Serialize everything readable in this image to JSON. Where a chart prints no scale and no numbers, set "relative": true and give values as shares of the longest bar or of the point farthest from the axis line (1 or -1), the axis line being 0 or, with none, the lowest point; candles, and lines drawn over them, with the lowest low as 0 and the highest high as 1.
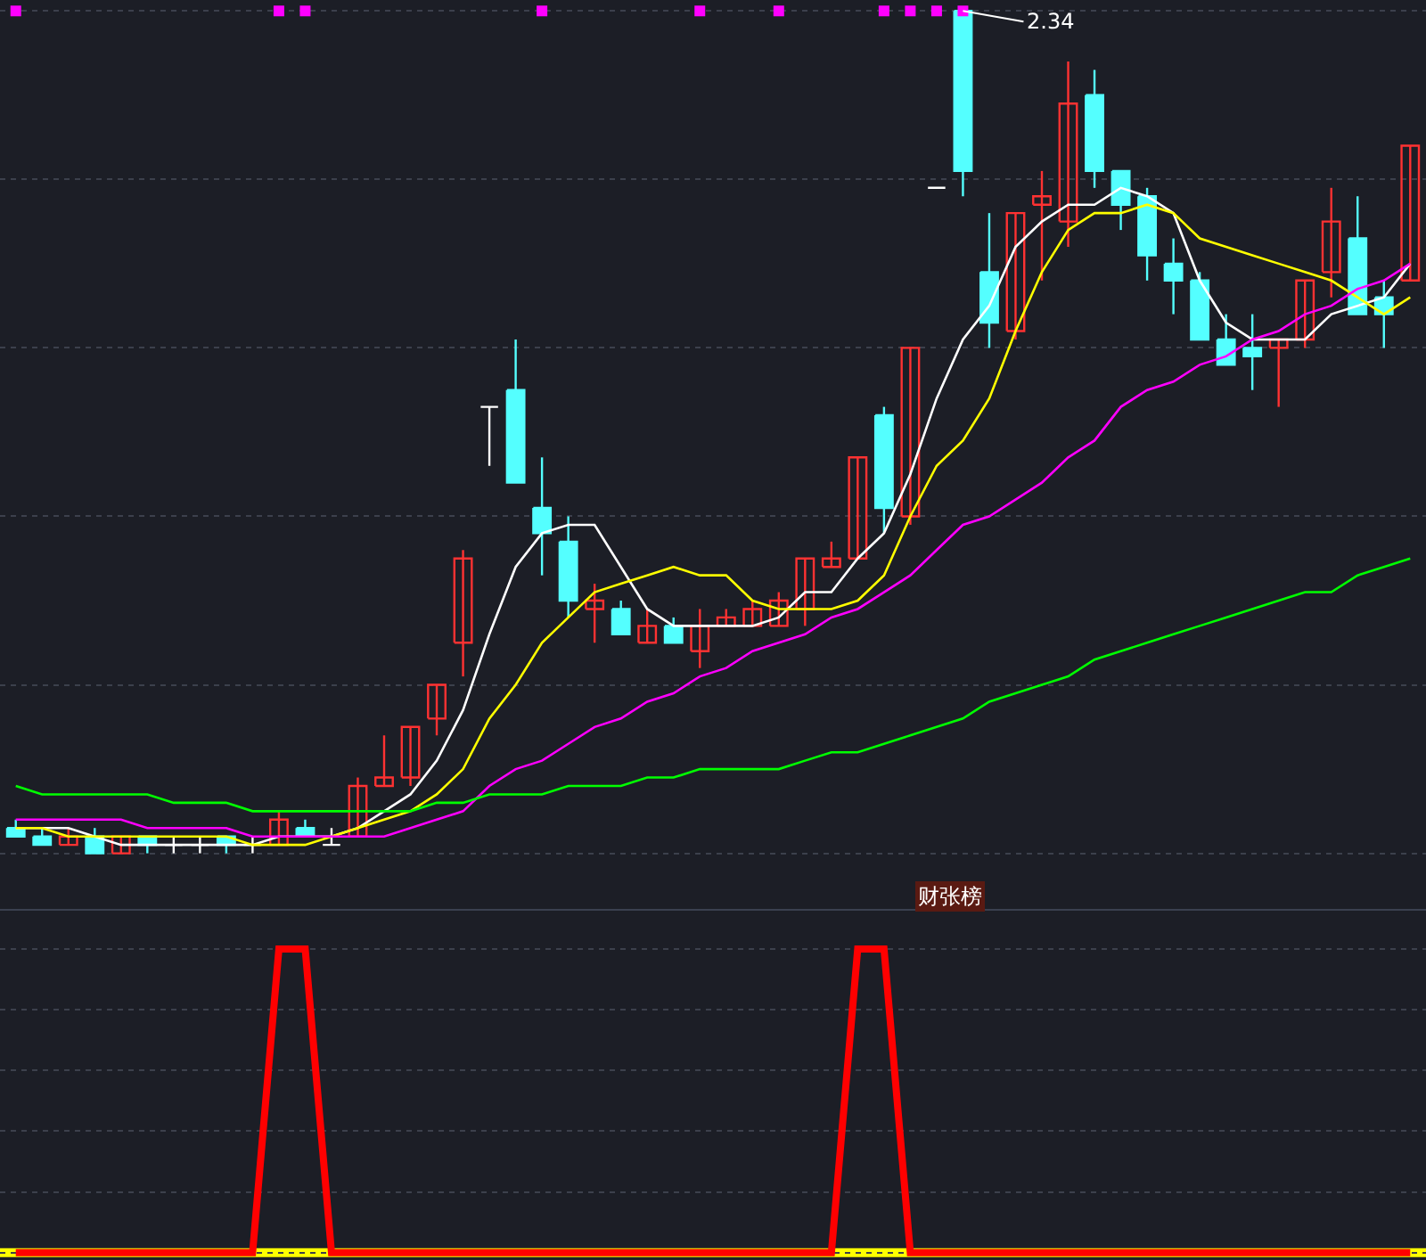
{
  "chart_data": [
    {
      "type": "candlestick",
      "relative": true,
      "grid": true,
      "categories": [
        null,
        null,
        null,
        null,
        null,
        null,
        null,
        null,
        null,
        null,
        null,
        null,
        null,
        null,
        null,
        null,
        null,
        null,
        null,
        null,
        null,
        null,
        null,
        null,
        null,
        null,
        null,
        null,
        null,
        null,
        null,
        null,
        null,
        null,
        null,
        null,
        null,
        null,
        null,
        null,
        null,
        null,
        null,
        null,
        null,
        null,
        null,
        null,
        null,
        null,
        null,
        null,
        null,
        null
      ],
      "ohlc": [
        [
          0.03,
          0.04,
          0.02,
          0.02
        ],
        [
          0.02,
          0.03,
          0.01,
          0.01
        ],
        [
          0.01,
          0.03,
          0.01,
          0.02
        ],
        [
          0.02,
          0.03,
          0.0,
          0.0
        ],
        [
          0.0,
          0.02,
          0.0,
          0.02
        ],
        [
          0.02,
          0.02,
          0.0,
          0.01
        ],
        [
          0.01,
          0.02,
          0.0,
          0.01
        ],
        [
          0.01,
          0.02,
          0.0,
          0.01
        ],
        [
          0.02,
          0.02,
          0.0,
          0.01
        ],
        [
          0.01,
          0.02,
          0.0,
          0.01
        ],
        [
          0.01,
          0.05,
          0.01,
          0.04
        ],
        [
          0.03,
          0.04,
          0.02,
          0.02
        ],
        [
          0.01,
          0.03,
          0.01,
          0.01
        ],
        [
          0.02,
          0.09,
          0.02,
          0.08
        ],
        [
          0.08,
          0.14,
          0.08,
          0.09
        ],
        [
          0.09,
          0.15,
          0.08,
          0.15
        ],
        [
          0.16,
          0.2,
          0.14,
          0.2
        ],
        [
          0.25,
          0.36,
          0.21,
          0.35
        ],
        [
          0.53,
          0.53,
          0.46,
          0.53
        ],
        [
          0.55,
          0.61,
          0.44,
          0.44
        ],
        [
          0.41,
          0.47,
          0.33,
          0.38
        ],
        [
          0.37,
          0.4,
          0.28,
          0.3
        ],
        [
          0.29,
          0.32,
          0.25,
          0.3
        ],
        [
          0.29,
          0.3,
          0.26,
          0.26
        ],
        [
          0.25,
          0.29,
          0.25,
          0.27
        ],
        [
          0.27,
          0.28,
          0.25,
          0.25
        ],
        [
          0.24,
          0.29,
          0.22,
          0.27
        ],
        [
          0.27,
          0.29,
          0.27,
          0.28
        ],
        [
          0.27,
          0.3,
          0.27,
          0.29
        ],
        [
          0.27,
          0.31,
          0.27,
          0.3
        ],
        [
          0.29,
          0.35,
          0.27,
          0.35
        ],
        [
          0.34,
          0.37,
          0.34,
          0.35
        ],
        [
          0.35,
          0.47,
          0.35,
          0.47
        ],
        [
          0.52,
          0.53,
          0.38,
          0.41
        ],
        [
          0.4,
          0.6,
          0.39,
          0.6
        ],
        [
          0.79,
          0.79,
          0.79,
          0.79
        ],
        [
          1.0,
          1.0,
          0.78,
          0.81
        ],
        [
          0.69,
          0.76,
          0.6,
          0.63
        ],
        [
          0.62,
          0.76,
          0.61,
          0.76
        ],
        [
          0.77,
          0.81,
          0.68,
          0.78
        ],
        [
          0.75,
          0.94,
          0.72,
          0.89
        ],
        [
          0.9,
          0.93,
          0.79,
          0.81
        ],
        [
          0.81,
          0.81,
          0.74,
          0.77
        ],
        [
          0.78,
          0.79,
          0.68,
          0.71
        ],
        [
          0.7,
          0.73,
          0.64,
          0.68
        ],
        [
          0.68,
          0.69,
          0.61,
          0.61
        ],
        [
          0.61,
          0.64,
          0.58,
          0.58
        ],
        [
          0.6,
          0.64,
          0.55,
          0.59
        ],
        [
          0.6,
          0.61,
          0.53,
          0.61
        ],
        [
          0.61,
          0.68,
          0.6,
          0.68
        ],
        [
          0.69,
          0.79,
          0.66,
          0.75
        ],
        [
          0.73,
          0.78,
          0.64,
          0.64
        ],
        [
          0.66,
          0.68,
          0.6,
          0.64
        ],
        [
          0.68,
          0.84,
          0.68,
          0.84
        ]
      ],
      "series": [
        {
          "type": "line",
          "color": "#ffffff",
          "values": [
            0.03,
            0.03,
            0.03,
            0.02,
            0.01,
            0.01,
            0.01,
            0.01,
            0.01,
            0.01,
            0.02,
            0.02,
            0.02,
            0.03,
            0.05,
            0.07,
            0.11,
            0.17,
            0.26,
            0.34,
            0.38,
            0.39,
            0.39,
            0.34,
            0.29,
            0.27,
            0.27,
            0.27,
            0.27,
            0.28,
            0.31,
            0.31,
            0.35,
            0.38,
            0.45,
            0.54,
            0.61,
            0.65,
            0.72,
            0.75,
            0.77,
            0.77,
            0.79,
            0.78,
            0.76,
            0.68,
            0.63,
            0.61,
            0.61,
            0.61,
            0.64,
            0.65,
            0.66,
            0.7
          ]
        },
        {
          "type": "line",
          "color": "#ffff00",
          "values": [
            0.03,
            0.03,
            0.02,
            0.02,
            0.02,
            0.02,
            0.02,
            0.02,
            0.02,
            0.01,
            0.01,
            0.01,
            0.02,
            0.03,
            0.04,
            0.05,
            0.07,
            0.1,
            0.16,
            0.2,
            0.25,
            0.28,
            0.31,
            0.32,
            0.33,
            0.34,
            0.33,
            0.33,
            0.3,
            0.29,
            0.29,
            0.29,
            0.3,
            0.33,
            0.4,
            0.46,
            0.49,
            0.54,
            0.62,
            0.69,
            0.74,
            0.76,
            0.76,
            0.77,
            0.76,
            0.73,
            0.72,
            0.71,
            0.7,
            0.69,
            0.68,
            0.66,
            0.64,
            0.66
          ]
        },
        {
          "type": "line",
          "color": "#ff00ff",
          "values": [
            0.04,
            0.04,
            0.04,
            0.04,
            0.04,
            0.03,
            0.03,
            0.03,
            0.03,
            0.02,
            0.02,
            0.02,
            0.02,
            0.02,
            0.02,
            0.03,
            0.04,
            0.05,
            0.08,
            0.1,
            0.11,
            0.13,
            0.15,
            0.16,
            0.18,
            0.19,
            0.21,
            0.22,
            0.24,
            0.25,
            0.26,
            0.28,
            0.29,
            0.31,
            0.33,
            0.36,
            0.39,
            0.4,
            0.42,
            0.44,
            0.47,
            0.49,
            0.53,
            0.55,
            0.56,
            0.58,
            0.59,
            0.61,
            0.62,
            0.64,
            0.65,
            0.67,
            0.68,
            0.7
          ]
        },
        {
          "type": "line",
          "color": "#00ff00",
          "values": [
            0.08,
            0.07,
            0.07,
            0.07,
            0.07,
            0.07,
            0.06,
            0.06,
            0.06,
            0.05,
            0.05,
            0.05,
            0.05,
            0.05,
            0.05,
            0.05,
            0.06,
            0.06,
            0.07,
            0.07,
            0.07,
            0.08,
            0.08,
            0.08,
            0.09,
            0.09,
            0.1,
            0.1,
            0.1,
            0.1,
            0.11,
            0.12,
            0.12,
            0.13,
            0.14,
            0.15,
            0.16,
            0.18,
            0.19,
            0.2,
            0.21,
            0.23,
            0.24,
            0.25,
            0.26,
            0.27,
            0.28,
            0.29,
            0.3,
            0.31,
            0.31,
            0.33,
            0.34,
            0.35
          ]
        },
        {
          "type": "scatter",
          "color": "#ff00ff",
          "marker": "square",
          "values": [
            1,
            null,
            null,
            null,
            null,
            null,
            null,
            null,
            null,
            null,
            1,
            1,
            null,
            null,
            null,
            null,
            null,
            null,
            null,
            null,
            1,
            null,
            null,
            null,
            null,
            null,
            1,
            null,
            null,
            1,
            null,
            null,
            null,
            1,
            1,
            1,
            1,
            null,
            null,
            null,
            null,
            null,
            null,
            null,
            null,
            null,
            null,
            null,
            null,
            null,
            null,
            null,
            null,
            null
          ]
        }
      ],
      "annotations": [
        "2.34"
      ]
    },
    {
      "type": "line",
      "relative": true,
      "grid": true,
      "title": "财张榜",
      "categories": [
        null,
        null,
        null,
        null,
        null,
        null,
        null,
        null,
        null,
        null,
        null,
        null,
        null,
        null,
        null,
        null,
        null,
        null,
        null,
        null,
        null,
        null,
        null,
        null,
        null,
        null,
        null,
        null,
        null,
        null,
        null,
        null,
        null,
        null,
        null,
        null,
        null,
        null,
        null,
        null,
        null,
        null,
        null,
        null,
        null,
        null,
        null,
        null,
        null,
        null,
        null,
        null,
        null,
        null
      ],
      "series": [
        {
          "color": "#ff0000",
          "values": [
            0,
            0,
            0,
            0,
            0,
            0,
            0,
            0,
            0,
            0,
            1,
            1,
            0,
            0,
            0,
            0,
            0,
            0,
            0,
            0,
            0,
            0,
            0,
            0,
            0,
            0,
            0,
            0,
            0,
            0,
            0,
            0,
            1,
            1,
            0,
            0,
            0,
            0,
            0,
            0,
            0,
            0,
            0,
            0,
            0,
            0,
            0,
            0,
            0,
            0,
            0,
            0,
            0,
            0
          ]
        }
      ],
      "ref_lines": [
        {
          "axis": "y",
          "value": 0,
          "color": "#ffff00"
        }
      ]
    }
  ]
}
